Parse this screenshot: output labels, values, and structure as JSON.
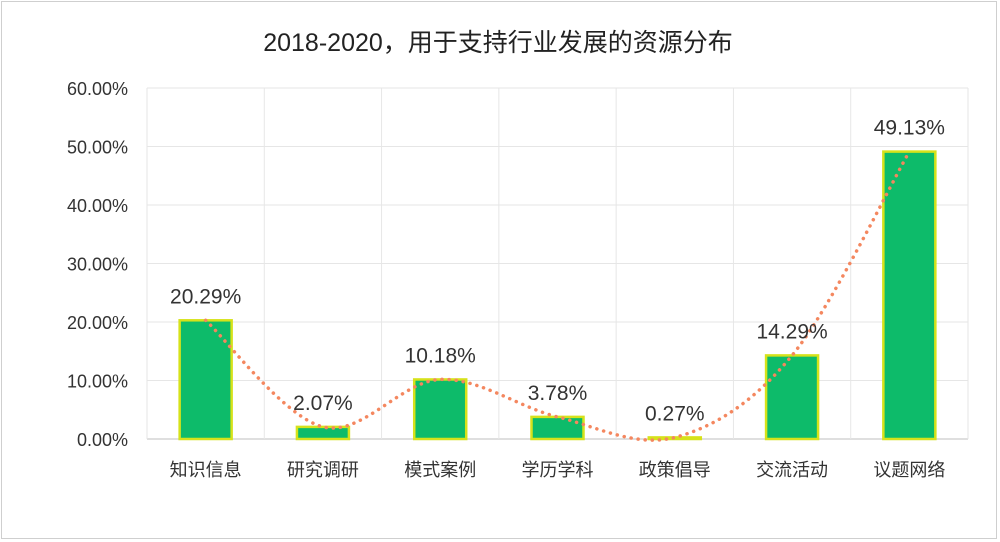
{
  "chart_data": {
    "type": "bar",
    "title": "2018-2020，用于支持行业发展的资源分布",
    "categories": [
      "知识信息",
      "研究调研",
      "模式案例",
      "学历学科",
      "政策倡导",
      "交流活动",
      "议题网络"
    ],
    "values": [
      20.29,
      2.07,
      10.18,
      3.78,
      0.27,
      14.29,
      49.13
    ],
    "data_labels": [
      "20.29%",
      "2.07%",
      "10.18%",
      "3.78%",
      "0.27%",
      "14.29%",
      "49.13%"
    ],
    "ylim": [
      0,
      60
    ],
    "yticks": [
      "0.00%",
      "10.00%",
      "20.00%",
      "30.00%",
      "40.00%",
      "50.00%",
      "60.00%"
    ],
    "grid": true,
    "trendline": "smooth dotted",
    "colors": {
      "bar_fill": "#0dbb6a",
      "bar_border": "#d6e21a",
      "trendline": "#f4875f",
      "grid": "#e6e6e6",
      "text": "#333333"
    }
  }
}
